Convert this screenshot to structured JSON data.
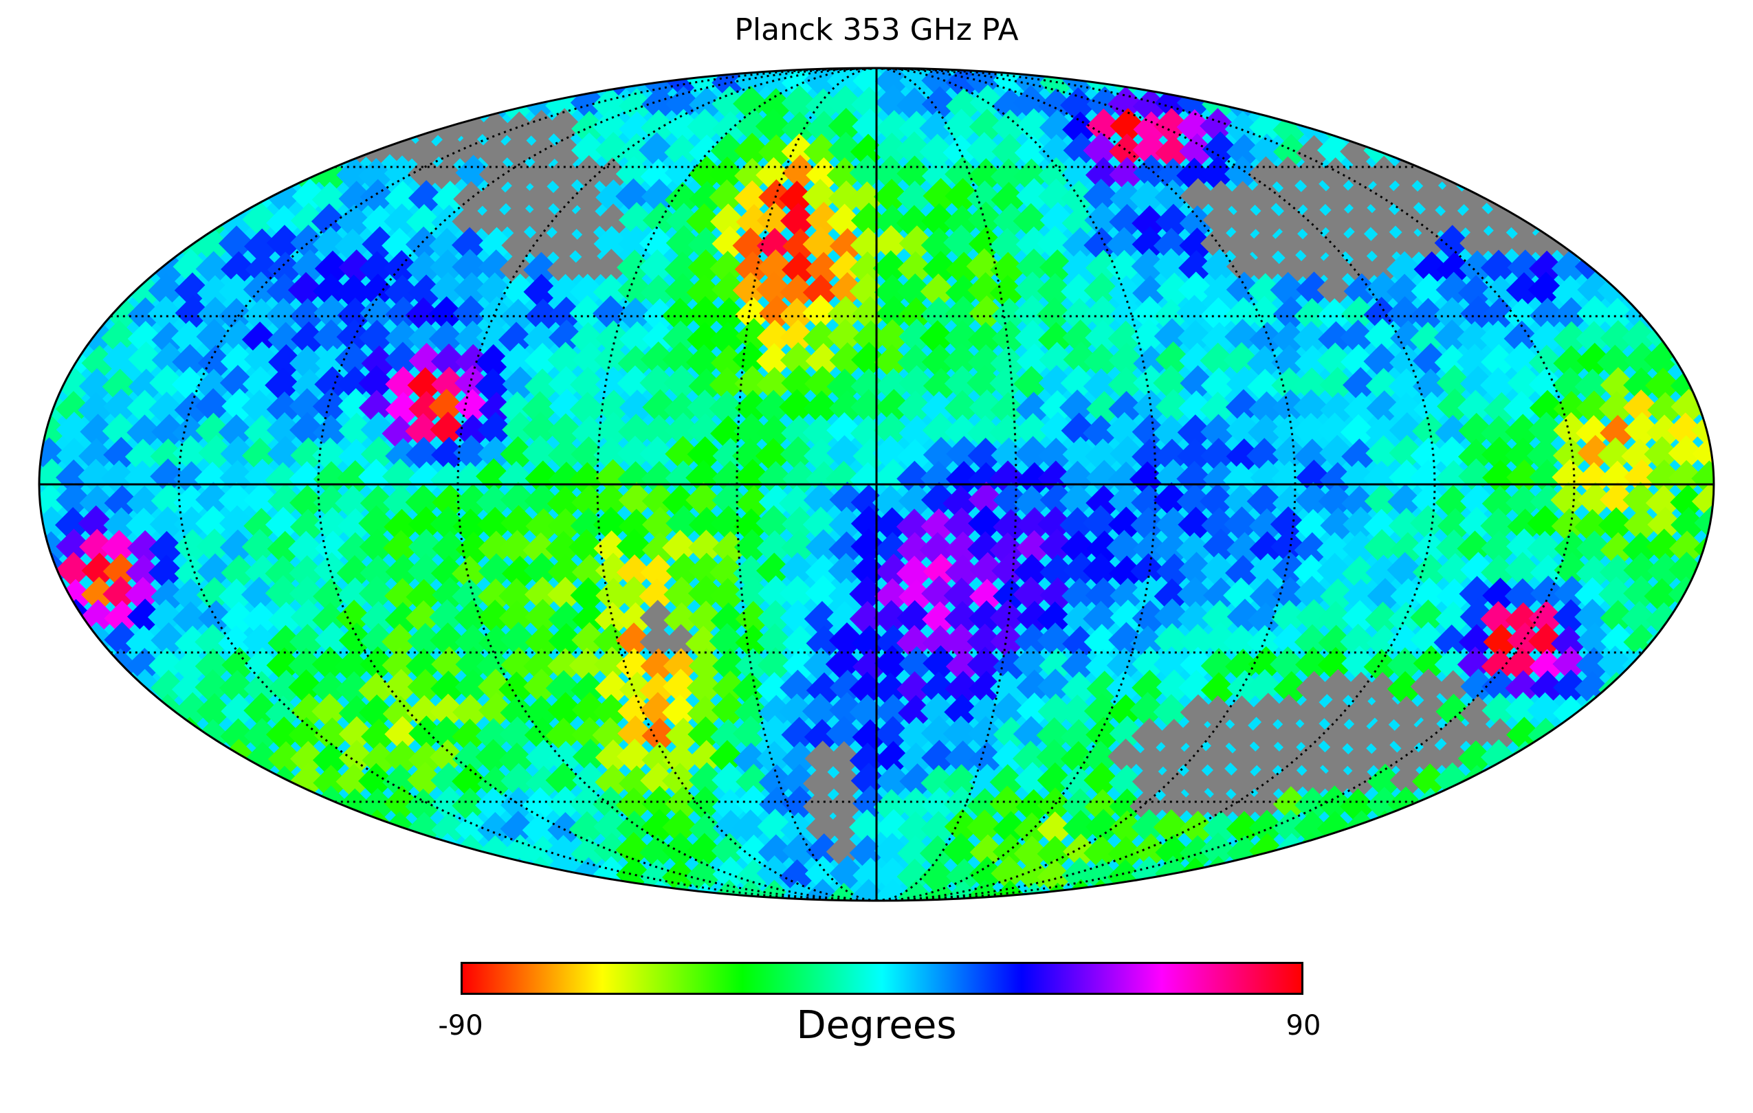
{
  "title": "Planck 353 GHz PA",
  "projection": "Mollweide",
  "colorbar": {
    "min_label": "-90",
    "max_label": "90",
    "label": "Degrees",
    "stops": [
      "#ff0000",
      "#ffff00",
      "#00ff00",
      "#00ffff",
      "#0000ff",
      "#ff00ff",
      "#ff0000"
    ]
  },
  "colors": {
    "mask": "#808080",
    "grid": "#000000",
    "background": "#ffffff"
  },
  "graticule": {
    "parallels_deg": [
      -60,
      -30,
      30,
      60
    ],
    "meridians_deg": [
      -150,
      -120,
      -90,
      -60,
      -30,
      30,
      60,
      90,
      120,
      150
    ]
  }
}
